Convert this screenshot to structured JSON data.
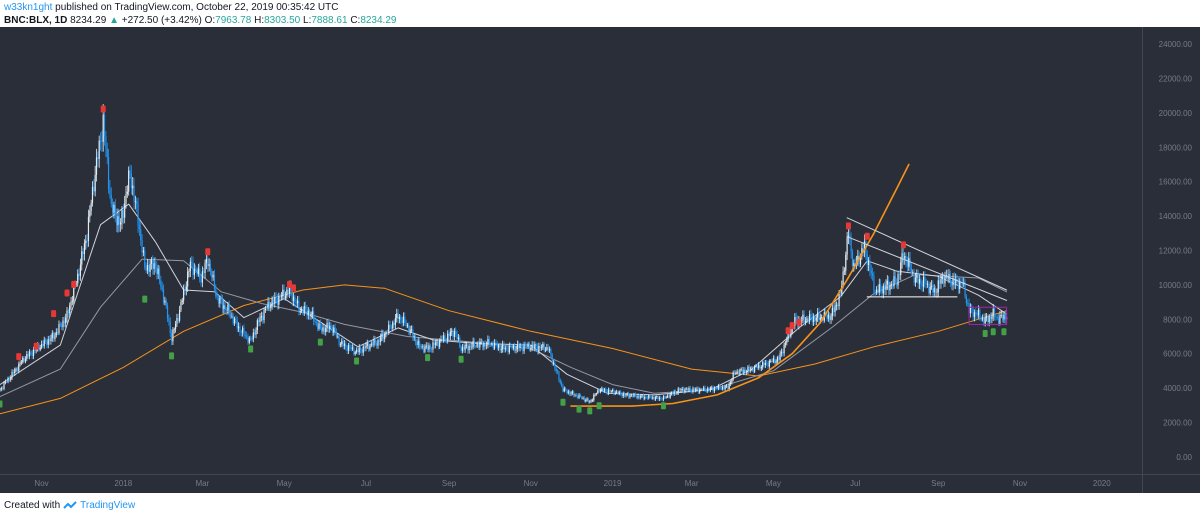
{
  "header": {
    "author": "w33kn1ght",
    "published_text": "published on TradingView.com, October 22, 2019 00:35:42 UTC"
  },
  "symbol_bar": {
    "symbol": "BNC:BLX, 1D",
    "last": "8234.29",
    "change": "+272.50 (+3.42%)",
    "open_label": "O:",
    "open": "7963.78",
    "high_label": "H:",
    "high": "8303.50",
    "low_label": "L:",
    "low": "7888.61",
    "close_label": "C:",
    "close": "8234.29"
  },
  "footer": {
    "created_with": "Created with",
    "brand": "TradingView"
  },
  "colors": {
    "background": "#2a2e39",
    "candle": "#2196f3",
    "candle_light": "#e1ecf2",
    "orange": "#f7931a",
    "red_marker": "#e53935",
    "green_marker": "#43a047",
    "axis_text": "#787b86"
  },
  "chart_data": {
    "type": "line",
    "title": "",
    "x_type": "date",
    "x_range": [
      "2017-10-01",
      "2020-01-31"
    ],
    "ylim": [
      -1000,
      25000
    ],
    "y_ticks": [
      "24000.00",
      "22000.00",
      "20000.00",
      "18000.00",
      "16000.00",
      "14000.00",
      "12000.00",
      "10000.00",
      "8000.00",
      "6000.00",
      "4000.00",
      "2000.00",
      "0.00"
    ],
    "x_ticks": [
      {
        "label": "Nov",
        "date": "2017-11-01"
      },
      {
        "label": "2018",
        "date": "2018-01-01"
      },
      {
        "label": "Mar",
        "date": "2018-03-01"
      },
      {
        "label": "May",
        "date": "2018-05-01"
      },
      {
        "label": "Jul",
        "date": "2018-07-01"
      },
      {
        "label": "Sep",
        "date": "2018-09-01"
      },
      {
        "label": "Nov",
        "date": "2018-11-01"
      },
      {
        "label": "2019",
        "date": "2019-01-01"
      },
      {
        "label": "Mar",
        "date": "2019-03-01"
      },
      {
        "label": "May",
        "date": "2019-05-01"
      },
      {
        "label": "Jul",
        "date": "2019-07-01"
      },
      {
        "label": "Sep",
        "date": "2019-09-01"
      },
      {
        "label": "Nov",
        "date": "2019-11-01"
      },
      {
        "label": "2020",
        "date": "2020-01-01"
      }
    ],
    "grid": false,
    "series": [
      {
        "kind": "price",
        "points": [
          [
            "2017-10-01",
            3900
          ],
          [
            "2017-10-10",
            4800
          ],
          [
            "2017-10-20",
            5800
          ],
          [
            "2017-11-01",
            6500
          ],
          [
            "2017-11-10",
            7000
          ],
          [
            "2017-11-20",
            8200
          ],
          [
            "2017-11-28",
            10500
          ],
          [
            "2017-12-05",
            13000
          ],
          [
            "2017-12-10",
            16000
          ],
          [
            "2017-12-17",
            19500
          ],
          [
            "2017-12-23",
            14500
          ],
          [
            "2017-12-30",
            13500
          ],
          [
            "2018-01-06",
            16500
          ],
          [
            "2018-01-12",
            13800
          ],
          [
            "2018-01-17",
            11000
          ],
          [
            "2018-01-25",
            11200
          ],
          [
            "2018-02-01",
            9000
          ],
          [
            "2018-02-06",
            6900
          ],
          [
            "2018-02-12",
            8500
          ],
          [
            "2018-02-20",
            11200
          ],
          [
            "2018-02-28",
            10400
          ],
          [
            "2018-03-05",
            11500
          ],
          [
            "2018-03-12",
            9200
          ],
          [
            "2018-03-20",
            8500
          ],
          [
            "2018-03-28",
            7500
          ],
          [
            "2018-04-06",
            6700
          ],
          [
            "2018-04-12",
            7900
          ],
          [
            "2018-04-20",
            8900
          ],
          [
            "2018-04-28",
            9300
          ],
          [
            "2018-05-05",
            9700
          ],
          [
            "2018-05-12",
            8600
          ],
          [
            "2018-05-20",
            8400
          ],
          [
            "2018-05-28",
            7400
          ],
          [
            "2018-06-05",
            7600
          ],
          [
            "2018-06-12",
            6600
          ],
          [
            "2018-06-24",
            6100
          ],
          [
            "2018-07-01",
            6400
          ],
          [
            "2018-07-10",
            6700
          ],
          [
            "2018-07-18",
            7400
          ],
          [
            "2018-07-25",
            8200
          ],
          [
            "2018-08-01",
            7600
          ],
          [
            "2018-08-10",
            6400
          ],
          [
            "2018-08-16",
            6300
          ],
          [
            "2018-08-25",
            6700
          ],
          [
            "2018-09-05",
            7300
          ],
          [
            "2018-09-10",
            6300
          ],
          [
            "2018-09-20",
            6500
          ],
          [
            "2018-10-01",
            6600
          ],
          [
            "2018-10-12",
            6300
          ],
          [
            "2018-10-25",
            6400
          ],
          [
            "2018-11-05",
            6400
          ],
          [
            "2018-11-14",
            6300
          ],
          [
            "2018-11-19",
            5200
          ],
          [
            "2018-11-25",
            3900
          ],
          [
            "2018-12-07",
            3500
          ],
          [
            "2018-12-15",
            3200
          ],
          [
            "2018-12-22",
            3900
          ],
          [
            "2019-01-01",
            3800
          ],
          [
            "2019-01-10",
            3600
          ],
          [
            "2019-01-28",
            3450
          ],
          [
            "2019-02-08",
            3400
          ],
          [
            "2019-02-20",
            3900
          ],
          [
            "2019-03-10",
            3900
          ],
          [
            "2019-03-28",
            4050
          ],
          [
            "2019-04-02",
            4900
          ],
          [
            "2019-04-15",
            5100
          ],
          [
            "2019-04-25",
            5400
          ],
          [
            "2019-05-05",
            5700
          ],
          [
            "2019-05-12",
            7000
          ],
          [
            "2019-05-17",
            7900
          ],
          [
            "2019-05-25",
            8000
          ],
          [
            "2019-06-03",
            8100
          ],
          [
            "2019-06-13",
            8200
          ],
          [
            "2019-06-20",
            9400
          ],
          [
            "2019-06-26",
            13000
          ],
          [
            "2019-06-30",
            11000
          ],
          [
            "2019-07-08",
            12200
          ],
          [
            "2019-07-16",
            9600
          ],
          [
            "2019-07-24",
            9900
          ],
          [
            "2019-08-01",
            10200
          ],
          [
            "2019-08-06",
            11800
          ],
          [
            "2019-08-15",
            10300
          ],
          [
            "2019-08-22",
            10100
          ],
          [
            "2019-08-29",
            9600
          ],
          [
            "2019-09-05",
            10500
          ],
          [
            "2019-09-12",
            10200
          ],
          [
            "2019-09-19",
            10100
          ],
          [
            "2019-09-24",
            8500
          ],
          [
            "2019-09-30",
            8300
          ],
          [
            "2019-10-06",
            7900
          ],
          [
            "2019-10-12",
            8300
          ],
          [
            "2019-10-16",
            8000
          ],
          [
            "2019-10-22",
            8234
          ]
        ]
      },
      {
        "kind": "ma-long-orange",
        "points": [
          [
            "2017-10-01",
            2500
          ],
          [
            "2017-11-15",
            3400
          ],
          [
            "2018-01-01",
            5200
          ],
          [
            "2018-02-15",
            7300
          ],
          [
            "2018-04-01",
            8800
          ],
          [
            "2018-05-15",
            9700
          ],
          [
            "2018-06-15",
            10000
          ],
          [
            "2018-07-15",
            9800
          ],
          [
            "2018-09-01",
            8500
          ],
          [
            "2018-11-01",
            7300
          ],
          [
            "2019-01-01",
            6300
          ],
          [
            "2019-03-01",
            5100
          ],
          [
            "2019-04-20",
            4700
          ],
          [
            "2019-06-01",
            5400
          ],
          [
            "2019-07-15",
            6400
          ],
          [
            "2019-09-01",
            7300
          ],
          [
            "2019-10-22",
            8500
          ]
        ]
      },
      {
        "kind": "ma-mid-gray",
        "points": [
          [
            "2017-10-01",
            3500
          ],
          [
            "2017-11-15",
            5100
          ],
          [
            "2017-12-15",
            8700
          ],
          [
            "2018-01-15",
            11500
          ],
          [
            "2018-02-15",
            11400
          ],
          [
            "2018-03-15",
            9600
          ],
          [
            "2018-04-15",
            8900
          ],
          [
            "2018-05-15",
            8400
          ],
          [
            "2018-06-15",
            7700
          ],
          [
            "2018-08-01",
            7000
          ],
          [
            "2018-09-15",
            6700
          ],
          [
            "2018-11-01",
            6300
          ],
          [
            "2018-12-01",
            5200
          ],
          [
            "2019-01-01",
            4200
          ],
          [
            "2019-02-01",
            3700
          ],
          [
            "2019-03-15",
            3900
          ],
          [
            "2019-05-01",
            5000
          ],
          [
            "2019-06-15",
            7600
          ],
          [
            "2019-07-15",
            9500
          ],
          [
            "2019-08-15",
            10600
          ],
          [
            "2019-10-01",
            10400
          ],
          [
            "2019-10-22",
            9600
          ]
        ]
      },
      {
        "kind": "ma-short-light",
        "points": [
          [
            "2017-10-01",
            4200
          ],
          [
            "2017-11-15",
            6500
          ],
          [
            "2017-12-15",
            13500
          ],
          [
            "2018-01-05",
            14700
          ],
          [
            "2018-01-25",
            12500
          ],
          [
            "2018-02-15",
            9700
          ],
          [
            "2018-03-10",
            9600
          ],
          [
            "2018-04-01",
            8100
          ],
          [
            "2018-05-01",
            9200
          ],
          [
            "2018-05-25",
            8000
          ],
          [
            "2018-06-25",
            6400
          ],
          [
            "2018-07-25",
            7500
          ],
          [
            "2018-08-20",
            6800
          ],
          [
            "2018-09-20",
            6600
          ],
          [
            "2018-11-01",
            6500
          ],
          [
            "2018-11-28",
            4800
          ],
          [
            "2018-12-28",
            3700
          ],
          [
            "2019-02-01",
            3600
          ],
          [
            "2019-03-15",
            3900
          ],
          [
            "2019-04-15",
            5100
          ],
          [
            "2019-05-20",
            7500
          ],
          [
            "2019-06-20",
            9300
          ],
          [
            "2019-07-10",
            11400
          ],
          [
            "2019-08-01",
            10800
          ],
          [
            "2019-09-01",
            10500
          ],
          [
            "2019-10-01",
            9400
          ],
          [
            "2019-10-22",
            8300
          ]
        ]
      },
      {
        "kind": "parabolic-curve",
        "points": [
          [
            "2018-12-01",
            2950
          ],
          [
            "2019-01-15",
            2950
          ],
          [
            "2019-02-15",
            3100
          ],
          [
            "2019-03-20",
            3600
          ],
          [
            "2019-04-20",
            4600
          ],
          [
            "2019-05-15",
            6000
          ],
          [
            "2019-06-05",
            7800
          ],
          [
            "2019-06-25",
            10300
          ],
          [
            "2019-07-15",
            13000
          ],
          [
            "2019-08-01",
            15600
          ],
          [
            "2019-08-10",
            17000
          ]
        ]
      },
      {
        "kind": "trendline-upper",
        "points": [
          [
            "2019-06-25",
            13900
          ],
          [
            "2019-10-22",
            9700
          ]
        ]
      },
      {
        "kind": "trendline-lower",
        "points": [
          [
            "2019-06-25",
            12800
          ],
          [
            "2019-10-22",
            9100
          ]
        ]
      },
      {
        "kind": "support-line",
        "points": [
          [
            "2019-07-10",
            9300
          ],
          [
            "2019-09-15",
            9300
          ]
        ]
      }
    ],
    "box": {
      "start": "2019-09-24",
      "end": "2019-10-22",
      "low": 7700,
      "high": 8700
    },
    "red_markers": [
      [
        "2017-10-15",
        5800
      ],
      [
        "2017-10-28",
        6400
      ],
      [
        "2017-11-10",
        8300
      ],
      [
        "2017-11-20",
        9500
      ],
      [
        "2017-11-25",
        10000
      ],
      [
        "2017-12-17",
        20200
      ],
      [
        "2018-03-05",
        11900
      ],
      [
        "2018-05-05",
        10000
      ],
      [
        "2018-05-08",
        9800
      ],
      [
        "2019-05-12",
        7300
      ],
      [
        "2019-05-15",
        7600
      ],
      [
        "2019-05-20",
        7800
      ],
      [
        "2019-06-26",
        13400
      ],
      [
        "2019-07-10",
        12800
      ],
      [
        "2019-08-06",
        12300
      ]
    ],
    "green_markers": [
      [
        "2017-10-01",
        3100
      ],
      [
        "2018-01-17",
        9200
      ],
      [
        "2018-02-06",
        5900
      ],
      [
        "2018-04-06",
        6300
      ],
      [
        "2018-05-28",
        6700
      ],
      [
        "2018-06-24",
        5600
      ],
      [
        "2018-08-16",
        5800
      ],
      [
        "2018-09-10",
        5700
      ],
      [
        "2018-11-25",
        3200
      ],
      [
        "2018-12-07",
        2800
      ],
      [
        "2018-12-15",
        2700
      ],
      [
        "2018-12-22",
        3000
      ],
      [
        "2019-02-08",
        3000
      ],
      [
        "2019-10-06",
        7200
      ],
      [
        "2019-10-12",
        7300
      ],
      [
        "2019-10-20",
        7300
      ]
    ]
  }
}
